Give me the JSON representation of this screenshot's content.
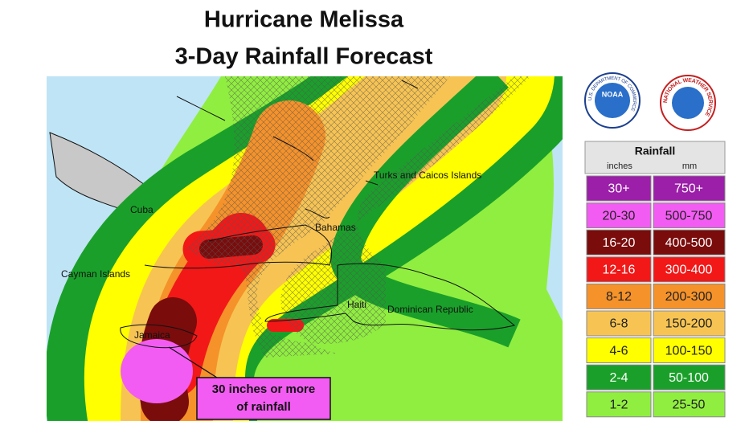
{
  "title": [
    "Hurricane Melissa",
    "3-Day Rainfall Forecast"
  ],
  "places": [
    "Turks and Caicos Islands",
    "Cuba",
    "Bahamas",
    "Cayman Islands",
    "Haiti",
    "Dominican Republic",
    "Jamaica"
  ],
  "annotation": [
    "30 inches or more",
    "of rainfall"
  ],
  "logos": {
    "noaa": "NOAA",
    "noaa_ring": "U.S. DEPARTMENT OF COMMERCE",
    "nws": "NATIONAL WEATHER SERVICE"
  },
  "legend": {
    "title": "Rainfall",
    "columns": [
      "inches",
      "mm"
    ],
    "rows": [
      {
        "inches": "30+",
        "mm": "750+",
        "color": "#9b1fa8"
      },
      {
        "inches": "20-30",
        "mm": "500-750",
        "color": "#f25cf2"
      },
      {
        "inches": "16-20",
        "mm": "400-500",
        "color": "#7a0c0c"
      },
      {
        "inches": "12-16",
        "mm": "300-400",
        "color": "#f21818"
      },
      {
        "inches": "8-12",
        "mm": "200-300",
        "color": "#f5922a"
      },
      {
        "inches": "6-8",
        "mm": "150-200",
        "color": "#f7c453"
      },
      {
        "inches": "4-6",
        "mm": "100-150",
        "color": "#ffff00"
      },
      {
        "inches": "2-4",
        "mm": "50-100",
        "color": "#1aa02a"
      },
      {
        "inches": "1-2",
        "mm": "25-50",
        "color": "#90ee40"
      }
    ]
  }
}
